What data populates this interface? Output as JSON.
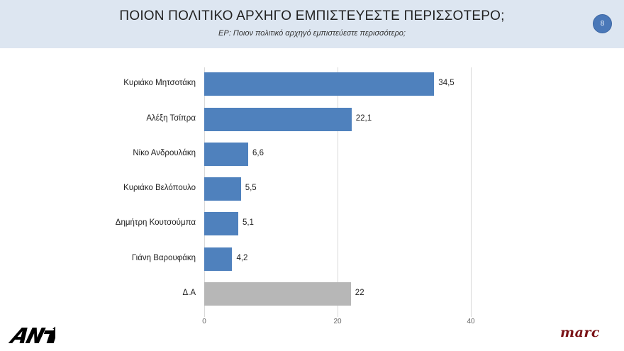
{
  "header": {
    "title": "ΠΟΙΟΝ ΠΟΛΙΤΙΚΟ ΑΡΧΗΓΟ ΕΜΠΙΣΤΕΥΕΣΤΕ ΠΕΡΙΣΣΟΤΕΡΟ;",
    "subtitle": "EP: Ποιον πολιτικό αρχηγό εμπιστεύεστε περισσότερο;",
    "page_number": "8"
  },
  "logos": {
    "left": "ANT1",
    "right": "marc"
  },
  "colors": {
    "header_bg": "#dde6f1",
    "bar_primary": "#4f81bd",
    "bar_other": "#b7b7b7",
    "badge": "#4a78b8",
    "marc_brand": "#7a1216"
  },
  "chart_data": {
    "type": "bar",
    "orientation": "horizontal",
    "title": "ΠΟΙΟΝ ΠΟΛΙΤΙΚΟ ΑΡΧΗΓΟ ΕΜΠΙΣΤΕΥΕΣΤΕ ΠΕΡΙΣΣΟΤΕΡΟ;",
    "subtitle": "EP: Ποιον πολιτικό αρχηγό εμπιστεύεστε περισσότερο;",
    "categories": [
      "Κυριάκο Μητσοτάκη",
      "Αλέξη Τσίπρα",
      "Νίκο Ανδρουλάκη",
      "Κυριάκο Βελόπουλο",
      "Δημήτρη Κουτσούμπα",
      "Γιάνη Βαρουφάκη",
      "Δ.Α"
    ],
    "values": [
      34.5,
      22.1,
      6.6,
      5.5,
      5.1,
      4.2,
      22
    ],
    "value_labels": [
      "34,5",
      "22,1",
      "6,6",
      "5,5",
      "5,1",
      "4,2",
      "22"
    ],
    "bar_colors": [
      "#4f81bd",
      "#4f81bd",
      "#4f81bd",
      "#4f81bd",
      "#4f81bd",
      "#4f81bd",
      "#b7b7b7"
    ],
    "xlabel": "",
    "ylabel": "",
    "xlim": [
      0,
      40
    ],
    "xticks": [
      0,
      20,
      40
    ],
    "xtick_labels": [
      "0",
      "20",
      "40"
    ],
    "grid": true,
    "legend": null
  }
}
